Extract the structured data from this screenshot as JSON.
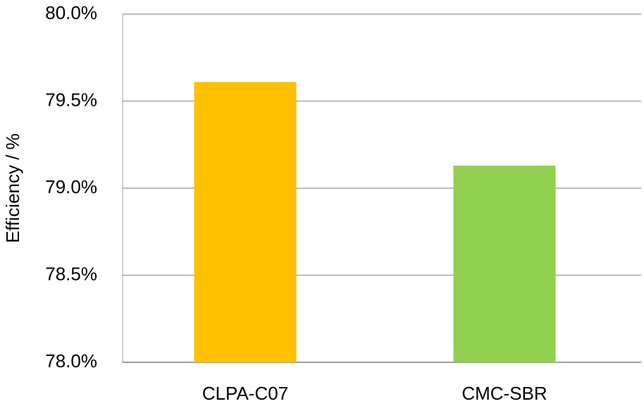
{
  "chart_data": {
    "type": "bar",
    "y_label": "Efficiency / %",
    "categories": [
      "CLPA-C07",
      "CMC-SBR"
    ],
    "values": [
      79.61,
      79.13
    ],
    "colors": [
      "#ffc000",
      "#92d050"
    ],
    "ylim": [
      78,
      80
    ],
    "yticks": [
      {
        "value": 78,
        "label": "78.0%"
      },
      {
        "value": 78.5,
        "label": "78.5%"
      },
      {
        "value": 79,
        "label": "79.0%"
      },
      {
        "value": 79.5,
        "label": "79.5%"
      },
      {
        "value": 80,
        "label": "80.0%"
      }
    ],
    "grid": true
  }
}
